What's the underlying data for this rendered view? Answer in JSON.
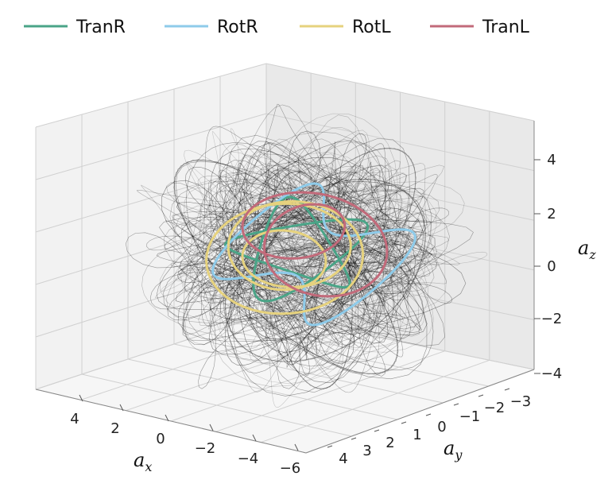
{
  "chart_data": {
    "type": "line3d",
    "legend": {
      "placement": "top",
      "entries": [
        {
          "name": "TranR",
          "color": "#4aa487"
        },
        {
          "name": "RotR",
          "color": "#8ecbea"
        },
        {
          "name": "RotL",
          "color": "#e6d27e"
        },
        {
          "name": "TranL",
          "color": "#c26a7a"
        }
      ]
    },
    "axes": {
      "x": {
        "label": "a",
        "sub": "x",
        "ticks": [
          "4",
          "2",
          "0",
          "−2",
          "−4",
          "−6"
        ],
        "range": [
          5.5,
          -6.2
        ]
      },
      "y": {
        "label": "a",
        "sub": "y",
        "ticks": [
          "4",
          "3",
          "2",
          "1",
          "0",
          "−1",
          "−2",
          "−3"
        ],
        "range": [
          4.3,
          -3.4
        ]
      },
      "z": {
        "label": "a",
        "sub": "z",
        "ticks": [
          "4",
          "2",
          "0",
          "−2",
          "−4"
        ],
        "range": [
          -4.2,
          5.2
        ]
      }
    },
    "background": {
      "trajectory_color": "#000000",
      "style": "dense thin black curves"
    },
    "grid": true,
    "series": [
      {
        "name": "TranR",
        "color": "#4aa487"
      },
      {
        "name": "RotR",
        "color": "#8ecbea"
      },
      {
        "name": "RotL",
        "color": "#e6d27e"
      },
      {
        "name": "TranL",
        "color": "#c26a7a"
      }
    ]
  }
}
